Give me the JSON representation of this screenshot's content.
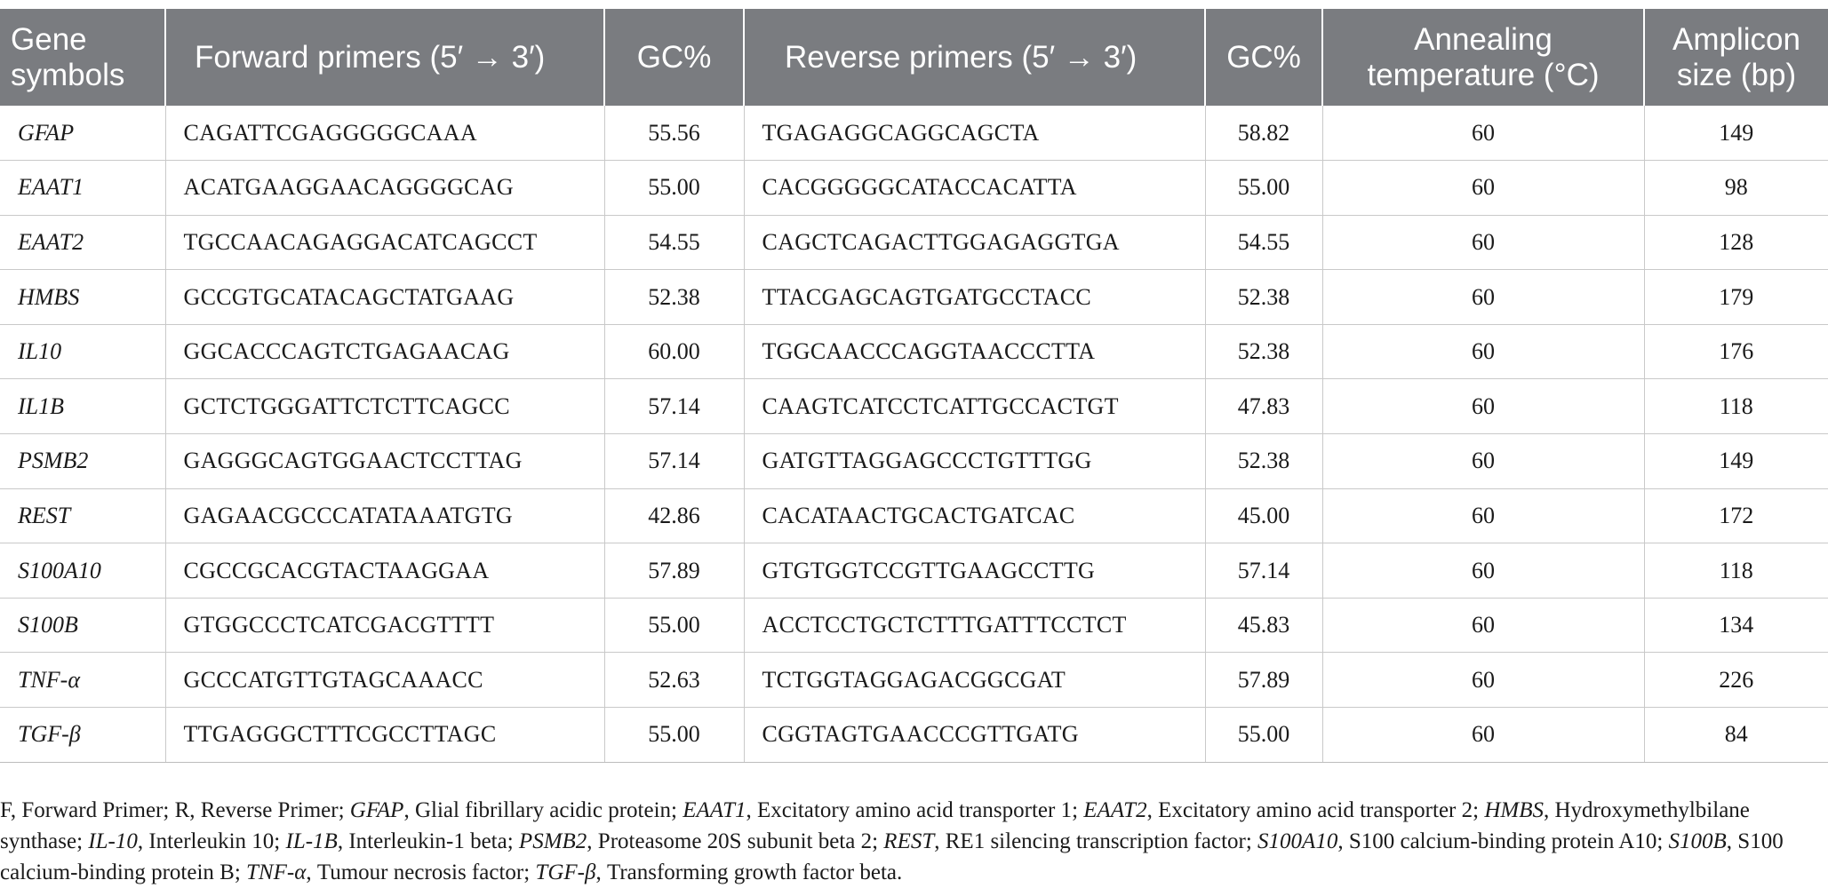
{
  "headers": {
    "gene": "Gene symbols",
    "forward": "Forward primers (5′ → 3′)",
    "gc1": "GC%",
    "reverse": "Reverse primers (5′ → 3′)",
    "gc2": "GC%",
    "annealing": "Annealing temperature (°C)",
    "amplicon": "Amplicon size (bp)"
  },
  "rows": [
    {
      "gene": "GFAP",
      "forward": "CAGATTCGAGGGGGCAAA",
      "gc_f": "55.56",
      "reverse": "TGAGAGGCAGGCAGCTA",
      "gc_r": "58.82",
      "anneal": "60",
      "amplicon": "149"
    },
    {
      "gene": "EAAT1",
      "forward": "ACATGAAGGAACAGGGGCAG",
      "gc_f": "55.00",
      "reverse": "CACGGGGGCATACCACATTA",
      "gc_r": "55.00",
      "anneal": "60",
      "amplicon": "98"
    },
    {
      "gene": "EAAT2",
      "forward": "TGCCAACAGAGGACATCAGCCT",
      "gc_f": "54.55",
      "reverse": "CAGCTCAGACTTGGAGAGGTGA",
      "gc_r": "54.55",
      "anneal": "60",
      "amplicon": "128"
    },
    {
      "gene": "HMBS",
      "forward": "GCCGTGCATACAGCTATGAAG",
      "gc_f": "52.38",
      "reverse": "TTACGAGCAGTGATGCCTACC",
      "gc_r": "52.38",
      "anneal": "60",
      "amplicon": "179"
    },
    {
      "gene": "IL10",
      "forward": "GGCACCCAGTCTGAGAACAG",
      "gc_f": "60.00",
      "reverse": "TGGCAACCCAGGTAACCCTTA",
      "gc_r": "52.38",
      "anneal": "60",
      "amplicon": "176"
    },
    {
      "gene": "IL1B",
      "forward": "GCTCTGGGATTCTCTTCAGCC",
      "gc_f": "57.14",
      "reverse": "CAAGTCATCCTCATTGCCACTGT",
      "gc_r": "47.83",
      "anneal": "60",
      "amplicon": "118"
    },
    {
      "gene": "PSMB2",
      "forward": "GAGGGCAGTGGAACTCCTTAG",
      "gc_f": "57.14",
      "reverse": "GATGTTAGGAGCCCTGTTTGG",
      "gc_r": "52.38",
      "anneal": "60",
      "amplicon": "149"
    },
    {
      "gene": "REST",
      "forward": "GAGAACGCCCATATAAATGTG",
      "gc_f": "42.86",
      "reverse": "CACATAACTGCACTGATCAC",
      "gc_r": "45.00",
      "anneal": "60",
      "amplicon": "172"
    },
    {
      "gene": "S100A10",
      "forward": "CGCCGCACGTACTAAGGAA",
      "gc_f": "57.89",
      "reverse": "GTGTGGTCCGTTGAAGCCTTG",
      "gc_r": "57.14",
      "anneal": "60",
      "amplicon": "118"
    },
    {
      "gene": "S100B",
      "forward": "GTGGCCCTCATCGACGTTTT",
      "gc_f": "55.00",
      "reverse": "ACCTCCTGCTCTTTGATTTCCTCT",
      "gc_r": "45.83",
      "anneal": "60",
      "amplicon": "134"
    },
    {
      "gene": "TNF-α",
      "forward": "GCCCATGTTGTAGCAAACC",
      "gc_f": "52.63",
      "reverse": "TCTGGTAGGAGACGGCGAT",
      "gc_r": "57.89",
      "anneal": "60",
      "amplicon": "226"
    },
    {
      "gene": "TGF-β",
      "forward": "TTGAGGGCTTTCGCCTTAGC",
      "gc_f": "55.00",
      "reverse": "CGGTAGTGAACCCGTTGATG",
      "gc_r": "55.00",
      "anneal": "60",
      "amplicon": "84"
    }
  ],
  "footnote": [
    {
      "text": "F, Forward Primer; R, Reverse Primer; "
    },
    {
      "text": "GFAP",
      "italic": true
    },
    {
      "text": ", Glial fibrillary acidic protein; "
    },
    {
      "text": "EAAT1",
      "italic": true
    },
    {
      "text": ", Excitatory amino acid transporter 1; "
    },
    {
      "text": "EAAT2",
      "italic": true
    },
    {
      "text": ", Excitatory amino acid transporter 2; "
    },
    {
      "text": "HMBS",
      "italic": true
    },
    {
      "text": ", Hydroxymethylbilane synthase; "
    },
    {
      "text": "IL-10",
      "italic": true
    },
    {
      "text": ", Interleukin 10; "
    },
    {
      "text": "IL-1B",
      "italic": true
    },
    {
      "text": ", Interleukin-1 beta; "
    },
    {
      "text": "PSMB2",
      "italic": true
    },
    {
      "text": ", Proteasome 20S subunit beta 2; "
    },
    {
      "text": "REST",
      "italic": true
    },
    {
      "text": ", RE1 silencing transcription factor; "
    },
    {
      "text": "S100A10",
      "italic": true
    },
    {
      "text": ", S100 calcium-binding protein A10; "
    },
    {
      "text": "S100B",
      "italic": true
    },
    {
      "text": ", S100 calcium-binding protein B; "
    },
    {
      "text": "TNF-α",
      "italic": true
    },
    {
      "text": ", Tumour necrosis factor; "
    },
    {
      "text": "TGF-β",
      "italic": true
    },
    {
      "text": ", Transforming growth factor beta."
    }
  ]
}
